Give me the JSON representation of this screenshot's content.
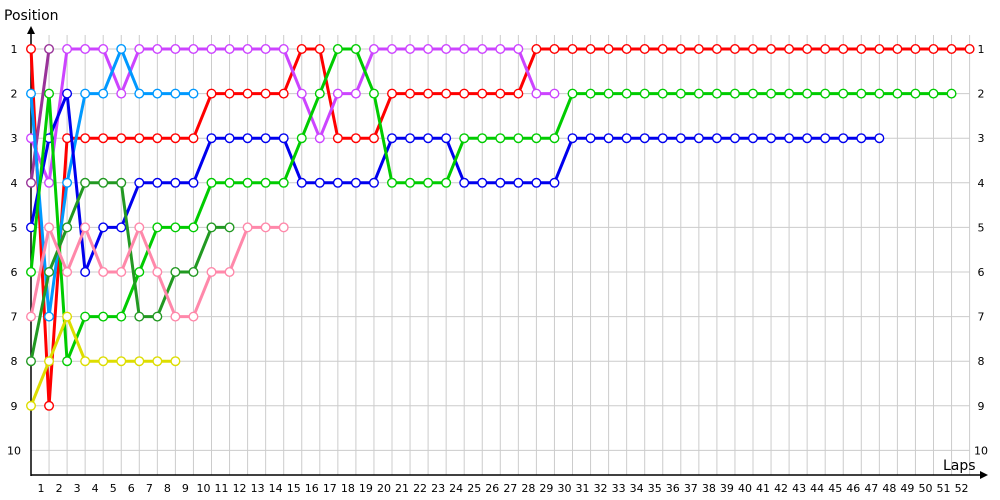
{
  "chart_data": {
    "type": "line",
    "title": "",
    "xlabel": "Laps",
    "ylabel": "Position",
    "x_range": [
      0,
      52
    ],
    "y_range": [
      1,
      10
    ],
    "y_inverted": true,
    "grid": true,
    "x_ticks": [
      1,
      2,
      3,
      4,
      5,
      6,
      7,
      8,
      9,
      10,
      11,
      12,
      13,
      14,
      15,
      16,
      17,
      18,
      19,
      20,
      21,
      22,
      23,
      24,
      25,
      26,
      27,
      28,
      29,
      30,
      31,
      32,
      33,
      34,
      35,
      36,
      37,
      38,
      39,
      40,
      41,
      42,
      43,
      44,
      45,
      46,
      47,
      48,
      49,
      50,
      51,
      52
    ],
    "y_ticks": [
      1,
      2,
      3,
      4,
      5,
      6,
      7,
      8,
      9,
      10
    ],
    "laps_start": 0,
    "series": [
      {
        "color": "#ff0000",
        "values": [
          1,
          9,
          3,
          3,
          3,
          3,
          3,
          3,
          3,
          3,
          2,
          2,
          2,
          2,
          2,
          1,
          1,
          3,
          3,
          3,
          2,
          2,
          2,
          2,
          2,
          2,
          2,
          2,
          1,
          1,
          1,
          1,
          1,
          1,
          1,
          1,
          1,
          1,
          1,
          1,
          1,
          1,
          1,
          1,
          1,
          1,
          1,
          1,
          1,
          1,
          1,
          1,
          1
        ]
      },
      {
        "color": "#cc44ff",
        "values": [
          3,
          4,
          1,
          1,
          1,
          2,
          1,
          1,
          1,
          1,
          1,
          1,
          1,
          1,
          1,
          2,
          3,
          2,
          2,
          1,
          1,
          1,
          1,
          1,
          1,
          1,
          1,
          1,
          2,
          2
        ]
      },
      {
        "color": "#993399",
        "values": [
          4,
          1
        ]
      },
      {
        "color": "#0099ff",
        "values": [
          2,
          7,
          4,
          2,
          2,
          1,
          2,
          2,
          2,
          2
        ]
      },
      {
        "color": "#0000ee",
        "values": [
          5,
          3,
          2,
          6,
          5,
          5,
          4,
          4,
          4,
          4,
          3,
          3,
          3,
          3,
          3,
          4,
          4,
          4,
          4,
          4,
          3,
          3,
          3,
          3,
          4,
          4,
          4,
          4,
          4,
          4,
          3,
          3,
          3,
          3,
          3,
          3,
          3,
          3,
          3,
          3,
          3,
          3,
          3,
          3,
          3,
          3,
          3,
          3
        ]
      },
      {
        "color": "#00cc00",
        "values": [
          6,
          2,
          8,
          7,
          7,
          7,
          6,
          5,
          5,
          5,
          4,
          4,
          4,
          4,
          4,
          3,
          2,
          1,
          1,
          2,
          4,
          4,
          4,
          4,
          3,
          3,
          3,
          3,
          3,
          3,
          2,
          2,
          2,
          2,
          2,
          2,
          2,
          2,
          2,
          2,
          2,
          2,
          2,
          2,
          2,
          2,
          2,
          2,
          2,
          2,
          2,
          2
        ]
      },
      {
        "color": "#229922",
        "values": [
          8,
          6,
          5,
          4,
          4,
          4,
          7,
          7,
          6,
          6,
          5,
          5
        ]
      },
      {
        "color": "#ff88aa",
        "values": [
          7,
          5,
          6,
          5,
          6,
          6,
          5,
          6,
          7,
          7,
          6,
          6,
          5,
          5,
          5
        ]
      },
      {
        "color": "#dddd00",
        "values": [
          9,
          8,
          7,
          8,
          8,
          8,
          8,
          8,
          8
        ]
      }
    ]
  }
}
